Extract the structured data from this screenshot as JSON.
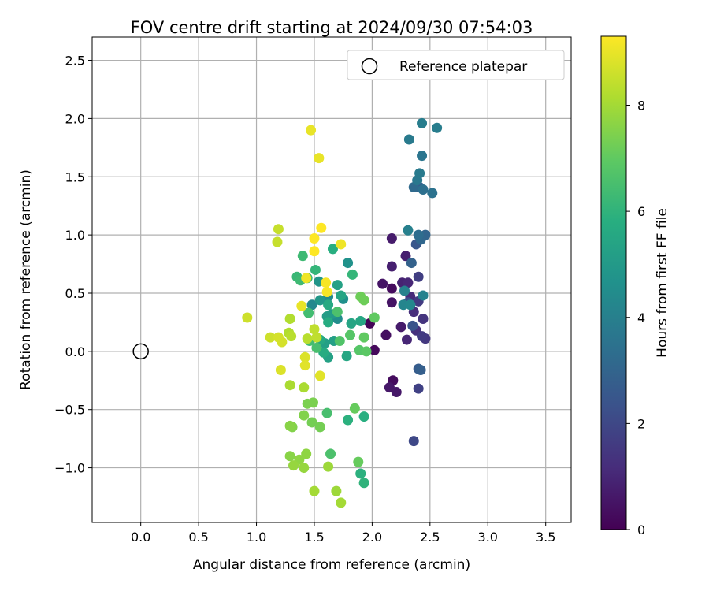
{
  "chart_data": {
    "type": "scatter",
    "title": "FOV centre drift starting at 2024/09/30 07:54:03",
    "xlabel": "Angular distance from reference (arcmin)",
    "ylabel": "Rotation from reference (arcmin)",
    "xlim": [
      -0.42,
      3.72
    ],
    "ylim": [
      -1.47,
      2.7
    ],
    "x_ticks": [
      "0.0",
      "0.5",
      "1.0",
      "1.5",
      "2.0",
      "2.5",
      "3.0",
      "3.5"
    ],
    "y_ticks": [
      "−1.0",
      "−0.5",
      "0.0",
      "0.5",
      "1.0",
      "1.5",
      "2.0",
      "2.5"
    ],
    "grid": true,
    "legend": {
      "placement": "top-right",
      "entries": [
        "Reference platepar"
      ]
    },
    "reference_point": {
      "x": 0.0,
      "y": 0.0
    },
    "colorbar": {
      "label": "Hours from first FF file",
      "range": [
        0,
        9.3
      ],
      "ticks": [
        "0",
        "2",
        "4",
        "6",
        "8"
      ],
      "colormap": "viridis"
    },
    "points": [
      {
        "x": 1.98,
        "y": 0.24,
        "h": 0.1
      },
      {
        "x": 2.02,
        "y": 0.01,
        "h": 0.2
      },
      {
        "x": 2.17,
        "y": 0.54,
        "h": 0.3
      },
      {
        "x": 2.18,
        "y": -0.25,
        "h": 0.3
      },
      {
        "x": 2.12,
        "y": 0.14,
        "h": 0.4
      },
      {
        "x": 2.17,
        "y": 0.42,
        "h": 0.5
      },
      {
        "x": 2.09,
        "y": 0.58,
        "h": 0.5
      },
      {
        "x": 2.15,
        "y": -0.31,
        "h": 0.6
      },
      {
        "x": 2.21,
        "y": -0.35,
        "h": 0.6
      },
      {
        "x": 2.25,
        "y": 0.21,
        "h": 0.7
      },
      {
        "x": 2.17,
        "y": 0.97,
        "h": 0.7
      },
      {
        "x": 2.29,
        "y": 0.82,
        "h": 0.8
      },
      {
        "x": 2.17,
        "y": 0.73,
        "h": 0.8
      },
      {
        "x": 2.26,
        "y": 0.59,
        "h": 0.9
      },
      {
        "x": 2.31,
        "y": 0.59,
        "h": 1.0
      },
      {
        "x": 2.3,
        "y": 0.1,
        "h": 1.0
      },
      {
        "x": 2.33,
        "y": 0.47,
        "h": 1.1
      },
      {
        "x": 2.36,
        "y": 0.34,
        "h": 1.2
      },
      {
        "x": 2.38,
        "y": 0.18,
        "h": 1.3
      },
      {
        "x": 2.44,
        "y": 0.28,
        "h": 1.4
      },
      {
        "x": 2.46,
        "y": 0.11,
        "h": 1.5
      },
      {
        "x": 2.43,
        "y": 0.13,
        "h": 1.6
      },
      {
        "x": 2.4,
        "y": 0.43,
        "h": 1.6
      },
      {
        "x": 2.4,
        "y": 0.64,
        "h": 1.7
      },
      {
        "x": 2.4,
        "y": -0.32,
        "h": 1.8
      },
      {
        "x": 2.36,
        "y": -0.77,
        "h": 2.0
      },
      {
        "x": 2.31,
        "y": 0.42,
        "h": 2.2
      },
      {
        "x": 2.35,
        "y": 0.22,
        "h": 2.4
      },
      {
        "x": 2.38,
        "y": 0.92,
        "h": 2.5
      },
      {
        "x": 2.41,
        "y": 1.41,
        "h": 2.6
      },
      {
        "x": 2.4,
        "y": -0.15,
        "h": 2.7
      },
      {
        "x": 2.42,
        "y": -0.16,
        "h": 2.8
      },
      {
        "x": 2.34,
        "y": 0.76,
        "h": 2.9
      },
      {
        "x": 2.46,
        "y": 1.0,
        "h": 3.0
      },
      {
        "x": 2.42,
        "y": 0.96,
        "h": 3.1
      },
      {
        "x": 2.36,
        "y": 1.41,
        "h": 3.2
      },
      {
        "x": 2.4,
        "y": 1.0,
        "h": 3.3
      },
      {
        "x": 2.44,
        "y": 1.39,
        "h": 3.4
      },
      {
        "x": 2.52,
        "y": 1.36,
        "h": 3.5
      },
      {
        "x": 2.43,
        "y": 1.68,
        "h": 3.6
      },
      {
        "x": 2.39,
        "y": 1.47,
        "h": 3.7
      },
      {
        "x": 2.41,
        "y": 1.53,
        "h": 3.8
      },
      {
        "x": 2.32,
        "y": 1.82,
        "h": 3.8
      },
      {
        "x": 2.43,
        "y": 1.96,
        "h": 3.9
      },
      {
        "x": 2.56,
        "y": 1.92,
        "h": 3.9
      },
      {
        "x": 2.31,
        "y": 1.04,
        "h": 4.0
      },
      {
        "x": 2.44,
        "y": 0.48,
        "h": 4.1
      },
      {
        "x": 2.28,
        "y": 0.52,
        "h": 4.1
      },
      {
        "x": 2.27,
        "y": 0.4,
        "h": 4.2
      },
      {
        "x": 2.33,
        "y": 0.4,
        "h": 4.3
      },
      {
        "x": 1.48,
        "y": 0.4,
        "h": 4.3
      },
      {
        "x": 1.62,
        "y": 0.47,
        "h": 4.4
      },
      {
        "x": 1.7,
        "y": 0.28,
        "h": 4.5
      },
      {
        "x": 1.75,
        "y": 0.45,
        "h": 4.6
      },
      {
        "x": 1.79,
        "y": 0.76,
        "h": 4.7
      },
      {
        "x": 1.54,
        "y": 0.6,
        "h": 4.8
      },
      {
        "x": 1.55,
        "y": 0.44,
        "h": 4.9
      },
      {
        "x": 1.65,
        "y": 0.32,
        "h": 5.0
      },
      {
        "x": 1.61,
        "y": 0.3,
        "h": 5.1
      },
      {
        "x": 1.67,
        "y": 0.09,
        "h": 5.2
      },
      {
        "x": 1.59,
        "y": 0.07,
        "h": 5.2
      },
      {
        "x": 1.62,
        "y": -0.05,
        "h": 5.3
      },
      {
        "x": 1.7,
        "y": 0.57,
        "h": 5.3
      },
      {
        "x": 1.73,
        "y": 0.48,
        "h": 5.4
      },
      {
        "x": 1.82,
        "y": 0.24,
        "h": 5.4
      },
      {
        "x": 1.78,
        "y": -0.04,
        "h": 5.5
      },
      {
        "x": 1.9,
        "y": 0.26,
        "h": 5.5
      },
      {
        "x": 1.62,
        "y": 0.4,
        "h": 5.6
      },
      {
        "x": 1.55,
        "y": 0.1,
        "h": 5.6
      },
      {
        "x": 1.62,
        "y": 0.25,
        "h": 5.7
      },
      {
        "x": 1.58,
        "y": -0.01,
        "h": 5.7
      },
      {
        "x": 1.93,
        "y": -0.56,
        "h": 5.8
      },
      {
        "x": 1.66,
        "y": 0.88,
        "h": 5.8
      },
      {
        "x": 1.79,
        "y": -0.59,
        "h": 5.9
      },
      {
        "x": 1.9,
        "y": -1.05,
        "h": 5.9
      },
      {
        "x": 1.93,
        "y": -1.13,
        "h": 6.0
      },
      {
        "x": 1.83,
        "y": 0.66,
        "h": 6.1
      },
      {
        "x": 1.51,
        "y": 0.7,
        "h": 6.1
      },
      {
        "x": 1.44,
        "y": 0.63,
        "h": 6.2
      },
      {
        "x": 1.35,
        "y": 0.64,
        "h": 6.2
      },
      {
        "x": 1.38,
        "y": 0.61,
        "h": 6.3
      },
      {
        "x": 1.4,
        "y": 0.82,
        "h": 6.3
      },
      {
        "x": 1.45,
        "y": 0.33,
        "h": 6.4
      },
      {
        "x": 1.46,
        "y": 0.09,
        "h": 6.4
      },
      {
        "x": 1.52,
        "y": 0.03,
        "h": 6.5
      },
      {
        "x": 1.61,
        "y": -0.53,
        "h": 6.5
      },
      {
        "x": 1.64,
        "y": -0.88,
        "h": 6.6
      },
      {
        "x": 1.7,
        "y": 0.34,
        "h": 6.6
      },
      {
        "x": 1.72,
        "y": 0.09,
        "h": 6.7
      },
      {
        "x": 1.81,
        "y": 0.14,
        "h": 6.8
      },
      {
        "x": 1.89,
        "y": 0.01,
        "h": 6.8
      },
      {
        "x": 1.95,
        "y": 0.0,
        "h": 6.9
      },
      {
        "x": 1.93,
        "y": 0.12,
        "h": 7.0
      },
      {
        "x": 2.02,
        "y": 0.29,
        "h": 7.0
      },
      {
        "x": 1.88,
        "y": -0.95,
        "h": 7.1
      },
      {
        "x": 1.85,
        "y": -0.49,
        "h": 7.1
      },
      {
        "x": 1.9,
        "y": 0.47,
        "h": 7.2
      },
      {
        "x": 1.93,
        "y": 0.44,
        "h": 7.2
      },
      {
        "x": 1.55,
        "y": -0.65,
        "h": 7.3
      },
      {
        "x": 1.48,
        "y": -0.61,
        "h": 7.3
      },
      {
        "x": 1.44,
        "y": -0.45,
        "h": 7.4
      },
      {
        "x": 1.49,
        "y": -0.44,
        "h": 7.4
      },
      {
        "x": 1.41,
        "y": -0.55,
        "h": 7.5
      },
      {
        "x": 1.31,
        "y": -0.65,
        "h": 7.5
      },
      {
        "x": 1.29,
        "y": -0.64,
        "h": 7.6
      },
      {
        "x": 1.29,
        "y": -0.9,
        "h": 7.6
      },
      {
        "x": 1.37,
        "y": -0.93,
        "h": 7.7
      },
      {
        "x": 1.43,
        "y": -0.88,
        "h": 7.7
      },
      {
        "x": 1.41,
        "y": -1.0,
        "h": 7.8
      },
      {
        "x": 1.32,
        "y": -0.98,
        "h": 7.8
      },
      {
        "x": 1.62,
        "y": -0.99,
        "h": 7.9
      },
      {
        "x": 1.69,
        "y": -1.2,
        "h": 7.9
      },
      {
        "x": 1.73,
        "y": -1.3,
        "h": 8.0
      },
      {
        "x": 1.5,
        "y": -1.2,
        "h": 8.0
      },
      {
        "x": 1.29,
        "y": -0.29,
        "h": 8.1
      },
      {
        "x": 1.41,
        "y": -0.31,
        "h": 8.1
      },
      {
        "x": 1.28,
        "y": 0.16,
        "h": 8.2
      },
      {
        "x": 1.29,
        "y": 0.28,
        "h": 8.2
      },
      {
        "x": 1.3,
        "y": 0.13,
        "h": 8.3
      },
      {
        "x": 1.44,
        "y": 0.11,
        "h": 8.3
      },
      {
        "x": 1.5,
        "y": 0.19,
        "h": 8.4
      },
      {
        "x": 1.52,
        "y": 0.12,
        "h": 8.4
      },
      {
        "x": 1.18,
        "y": 0.94,
        "h": 8.5
      },
      {
        "x": 1.19,
        "y": 1.05,
        "h": 8.5
      },
      {
        "x": 0.92,
        "y": 0.29,
        "h": 8.6
      },
      {
        "x": 1.12,
        "y": 0.12,
        "h": 8.6
      },
      {
        "x": 1.19,
        "y": 0.12,
        "h": 8.7
      },
      {
        "x": 1.22,
        "y": 0.08,
        "h": 8.7
      },
      {
        "x": 1.21,
        "y": -0.16,
        "h": 8.8
      },
      {
        "x": 1.42,
        "y": -0.05,
        "h": 8.8
      },
      {
        "x": 1.42,
        "y": -0.12,
        "h": 8.9
      },
      {
        "x": 1.55,
        "y": -0.21,
        "h": 8.9
      },
      {
        "x": 1.39,
        "y": 0.39,
        "h": 9.0
      },
      {
        "x": 1.47,
        "y": 1.9,
        "h": 9.0
      },
      {
        "x": 1.54,
        "y": 1.66,
        "h": 9.0
      },
      {
        "x": 1.43,
        "y": 0.63,
        "h": 9.1
      },
      {
        "x": 1.73,
        "y": 0.92,
        "h": 9.1
      },
      {
        "x": 1.6,
        "y": 0.59,
        "h": 9.2
      },
      {
        "x": 1.61,
        "y": 0.51,
        "h": 9.2
      },
      {
        "x": 1.5,
        "y": 0.97,
        "h": 9.3
      },
      {
        "x": 1.5,
        "y": 0.86,
        "h": 9.3
      },
      {
        "x": 1.56,
        "y": 1.06,
        "h": 9.3
      }
    ]
  }
}
